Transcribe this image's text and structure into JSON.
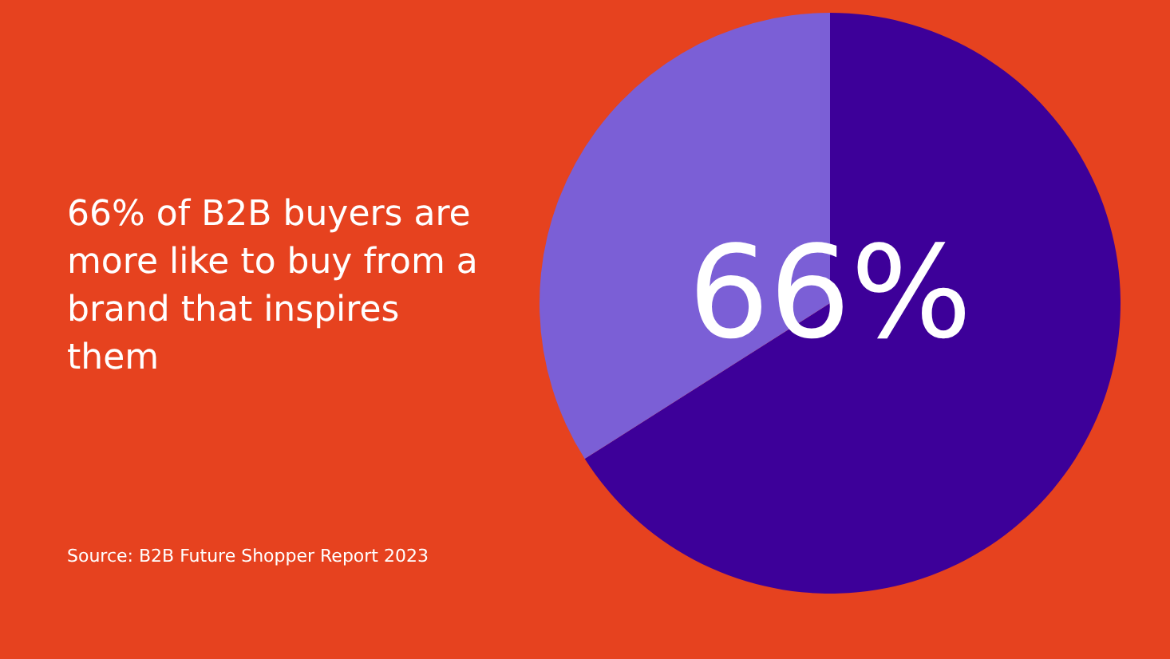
{
  "chart_data": {
    "type": "pie",
    "title": "66% of B2B buyers are more like to buy from a brand that inspires them",
    "categories": [
      null,
      null
    ],
    "values": [
      66,
      34
    ],
    "colors": [
      "#3d0099",
      "#7b5fd6"
    ],
    "value_labels": [
      "66%",
      null
    ],
    "legend": false,
    "annotations": [
      "Source: B2B Future Shopper Report 2023"
    ]
  }
}
